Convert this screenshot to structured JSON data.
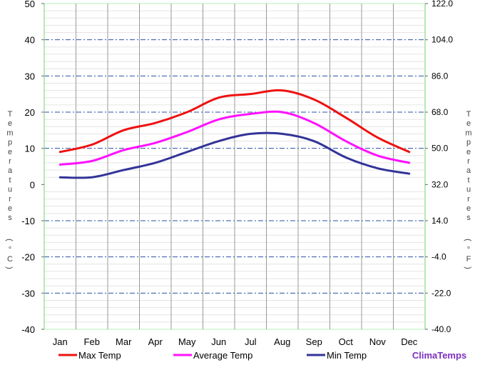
{
  "chart_data": {
    "type": "line",
    "title": "",
    "categories": [
      "Jan",
      "Feb",
      "Mar",
      "Apr",
      "May",
      "Jun",
      "Jul",
      "Aug",
      "Sep",
      "Oct",
      "Nov",
      "Dec"
    ],
    "series": [
      {
        "name": "Max Temp",
        "color": "#ee1111",
        "values": [
          9,
          11,
          15,
          17,
          20,
          24,
          25,
          26,
          23.5,
          18.5,
          13,
          9
        ]
      },
      {
        "name": "Average Temp",
        "color": "#ff11ff",
        "values": [
          5.5,
          6.5,
          9.5,
          11.5,
          14.5,
          18,
          19.5,
          20,
          17,
          12,
          8,
          6
        ]
      },
      {
        "name": "Min Temp",
        "color": "#333399",
        "values": [
          2,
          2,
          4,
          6,
          9,
          12,
          14,
          14,
          12,
          7.5,
          4.5,
          3
        ]
      }
    ],
    "ylim": [
      -40,
      50
    ],
    "y_ticks": [
      "50",
      "40",
      "30",
      "20",
      "10",
      "0",
      "-10",
      "-20",
      "-30",
      "-40"
    ],
    "y2_ticks": [
      "122.0",
      "104.0",
      "86.0",
      "68.0",
      "50.0",
      "32.0",
      "14.0",
      "-4.0",
      "-22.0",
      "-40.0"
    ],
    "ylabel_left": "Temperatures",
    "ylabel_left_unit": "°C",
    "ylabel_right": "Temperatures",
    "ylabel_right_unit": "°F",
    "grid": true,
    "legend_position": "bottom"
  },
  "brand": "ClimaTemps",
  "brand_color": "#7b2fbe"
}
